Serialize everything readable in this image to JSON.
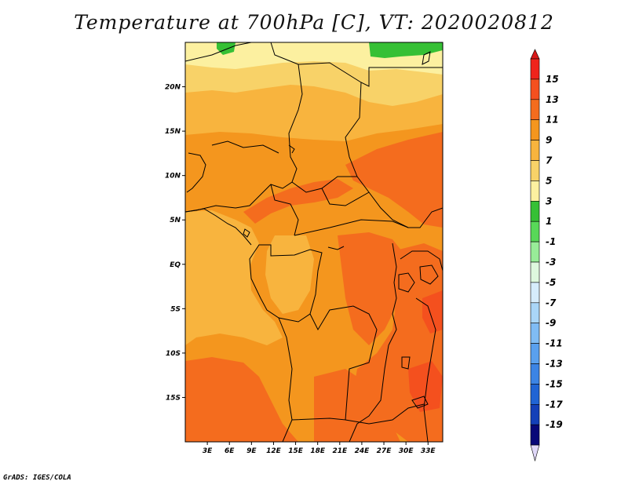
{
  "title": "Temperature at 700hPa [C], VT: 2020020812",
  "credit": "GrADS: IGES/COLA",
  "map": {
    "lat_range": [
      -20,
      25
    ],
    "lon_range": [
      0,
      35
    ],
    "y_ticks": [
      {
        "label": "20N",
        "lat": 20
      },
      {
        "label": "15N",
        "lat": 15
      },
      {
        "label": "10N",
        "lat": 10
      },
      {
        "label": "5N",
        "lat": 5
      },
      {
        "label": "EQ",
        "lat": 0
      },
      {
        "label": "5S",
        "lat": -5
      },
      {
        "label": "10S",
        "lat": -10
      },
      {
        "label": "15S",
        "lat": -15
      }
    ],
    "x_ticks": [
      {
        "label": "3E",
        "lon": 3
      },
      {
        "label": "6E",
        "lon": 6
      },
      {
        "label": "9E",
        "lon": 9
      },
      {
        "label": "12E",
        "lon": 12
      },
      {
        "label": "15E",
        "lon": 15
      },
      {
        "label": "18E",
        "lon": 18
      },
      {
        "label": "21E",
        "lon": 21
      },
      {
        "label": "24E",
        "lon": 24
      },
      {
        "label": "27E",
        "lon": 27
      },
      {
        "label": "30E",
        "lon": 30
      },
      {
        "label": "33E",
        "lon": 33
      }
    ]
  },
  "colorbar": {
    "labels": [
      "15",
      "13",
      "11",
      "9",
      "7",
      "5",
      "3",
      "1",
      "-1",
      "-3",
      "-5",
      "-7",
      "-9",
      "-11",
      "-13",
      "-15",
      "-17",
      "-19"
    ],
    "colors": [
      "#f0241c",
      "#f4501e",
      "#f46c1e",
      "#f4961e",
      "#f8b43e",
      "#f8d268",
      "#fcf0a0",
      "#36c035",
      "#58d858",
      "#98ec98",
      "#def8de",
      "#d6ecfc",
      "#aad6f8",
      "#80bcf4",
      "#5aa0ee",
      "#3c84e4",
      "#2064d4",
      "#1440b8",
      "#080878"
    ],
    "top_color": "#d81818",
    "bottom_color": "#e0d8f8"
  }
}
